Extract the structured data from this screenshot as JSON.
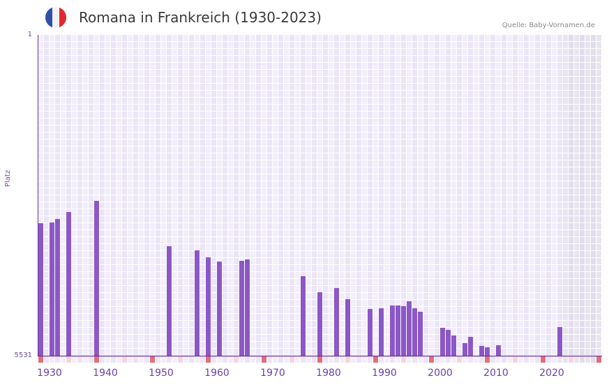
{
  "header": {
    "title": "Romana in Frankreich (1930-2023)",
    "source": "Quelle: Baby-Vornamen.de",
    "flag_colors": [
      "#2f4fa8",
      "#f2f2f2",
      "#e3262f"
    ]
  },
  "axis": {
    "y_label": "Platz",
    "y_top_label": "1",
    "y_bottom_label": "5531",
    "x_ticks": [
      "1930",
      "1940",
      "1950",
      "1960",
      "1970",
      "1980",
      "1990",
      "2000",
      "2010",
      "2020"
    ]
  },
  "colors": {
    "bar": "#8c57c6",
    "axis_line": "#6a2fa0",
    "cell_light": "#f2eefb",
    "cell_dark": "#ebe5f7",
    "future_light": "#e8e5f0",
    "future_dark": "#e2dded",
    "decade_marker": "#e07078",
    "half_decade_marker": "#f4d6e0"
  },
  "chart_data": {
    "type": "bar",
    "title": "Romana in Frankreich (1930-2023)",
    "xlabel": "",
    "ylabel": "Platz",
    "ylim": [
      5531,
      1
    ],
    "x_range": [
      1930,
      2030
    ],
    "shaded_future_from": 2024,
    "grid": true,
    "source": "Quelle: Baby-Vornamen.de",
    "categories": [
      1930,
      1932,
      1933,
      1935,
      1940,
      1953,
      1958,
      1960,
      1962,
      1966,
      1967,
      1977,
      1980,
      1983,
      1985,
      1989,
      1991,
      1993,
      1994,
      1995,
      1996,
      1997,
      1998,
      2002,
      2003,
      2004,
      2006,
      2007,
      2009,
      2010,
      2012,
      2023
    ],
    "values": [
      3247,
      3235,
      3175,
      3055,
      2862,
      3644,
      3716,
      3836,
      3908,
      3896,
      3872,
      4160,
      4437,
      4365,
      4557,
      4725,
      4713,
      4665,
      4665,
      4677,
      4593,
      4713,
      4773,
      5050,
      5086,
      5182,
      5314,
      5206,
      5362,
      5386,
      5350,
      5038
    ]
  }
}
